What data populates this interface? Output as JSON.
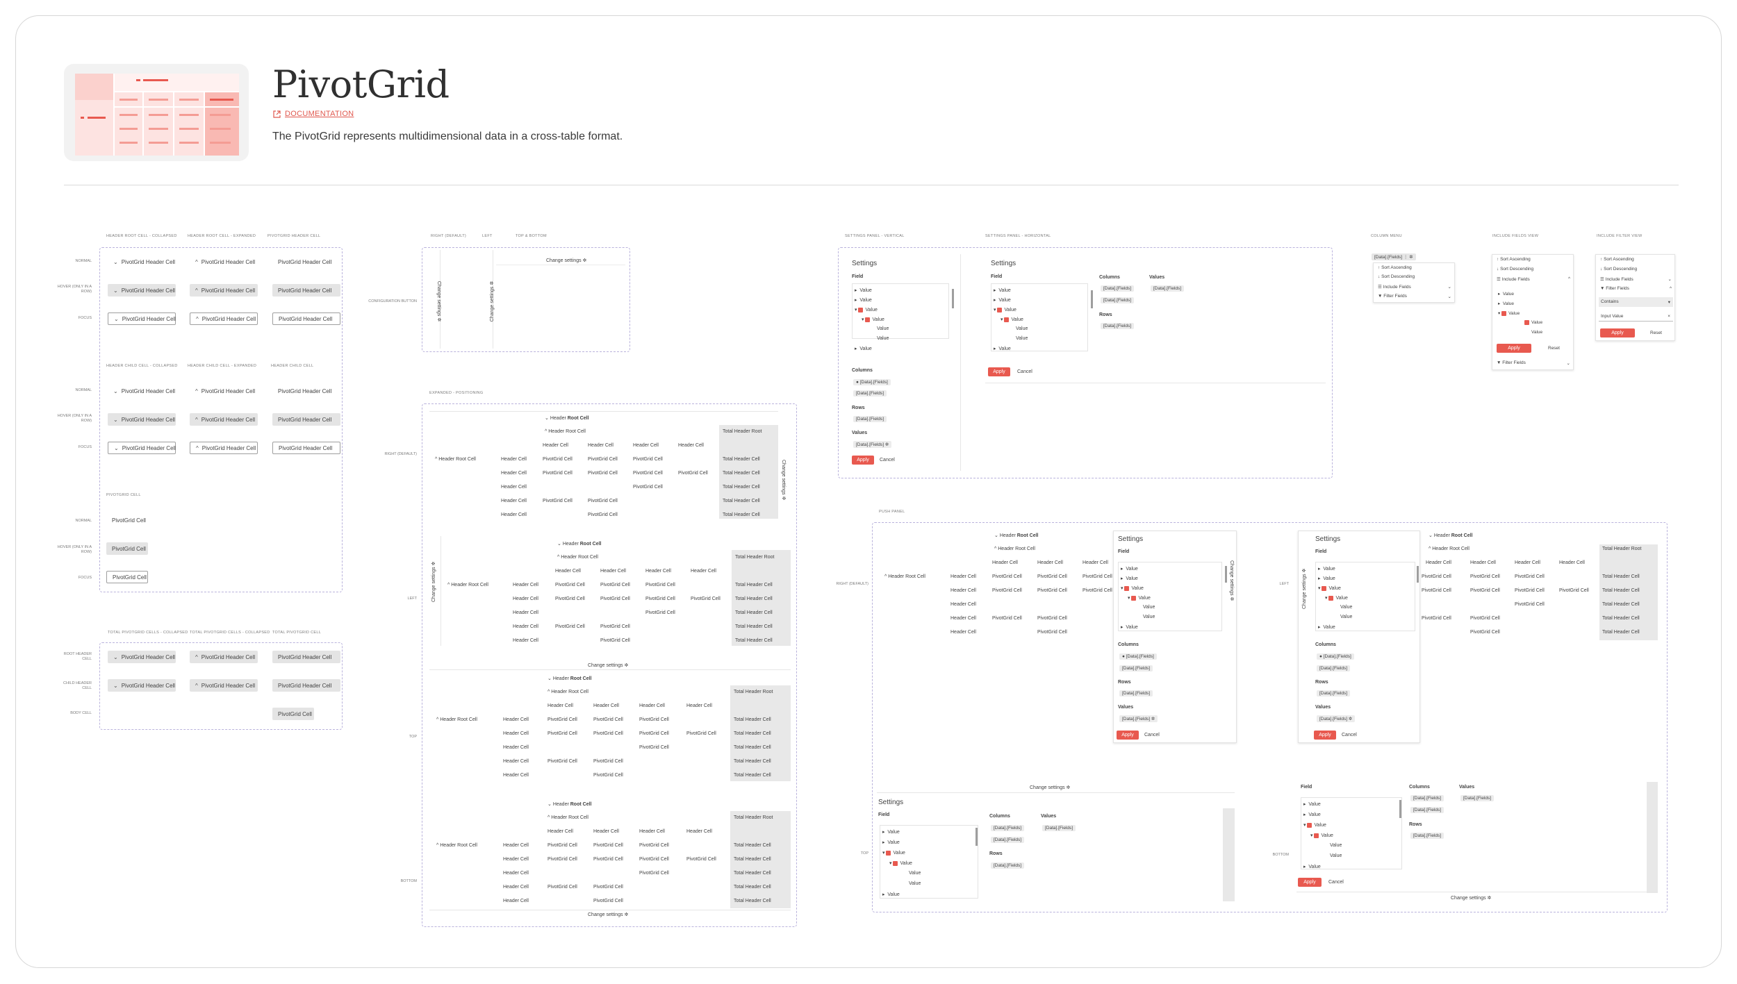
{
  "header": {
    "title": "PivotGrid",
    "documentation_label": "DOCUMENTATION",
    "description": "The PivotGrid represents multidimensional data in a cross-table format."
  },
  "colors": {
    "accent": "#e8594f",
    "dashed_border": "#b9b2dc",
    "hover": "#e4e4e4"
  },
  "states": {
    "group1": {
      "cols": [
        "HEADER ROOT CELL - COLLAPSED",
        "HEADER ROOT CELL - EXPANDED",
        "PIVOTGRID HEADER CELL"
      ]
    },
    "group2": {
      "cols": [
        "HEADER CHILD CELL - COLLAPSED",
        "HEADER CHILD CELL - EXPANDED",
        "HEADER CHILD CELL"
      ]
    },
    "group3": {
      "cols": [
        "PIVOTGRID CELL"
      ]
    },
    "group4": {
      "cols": [
        "TOTAL PIVOTGRID CELLS - COLLAPSED",
        "TOTAL PIVOTGRID CELLS - COLLAPSED",
        "TOTAL PIVOTGRID CELL"
      ]
    },
    "rows": {
      "normal": "NORMAL",
      "hover": "HOVER (ONLY IN A ROW)",
      "focus": "FOCUS",
      "root": "ROOT HEADER CELL",
      "child": "CHILD HEADER CELL",
      "body": "BODY CELL"
    },
    "cell_header": "PivotGrid Header Cell",
    "cell_plain": "PivotGrid Cell"
  },
  "config_button": {
    "caption": "CONFIGURATION BUTTON",
    "cols": [
      "RIGHT (DEFAULT)",
      "LEFT",
      "TOP & BOTTOM"
    ],
    "label": "Change settings"
  },
  "expanded": {
    "caption": "EXPANDED - POSITIONING",
    "positions": [
      "RIGHT (DEFAULT)",
      "LEFT",
      "TOP",
      "BOTTOM"
    ],
    "root_col": "Header Root Cell",
    "root_col_pre": "Header",
    "root_col_bold": "Root Cell",
    "row_root": "Header Root Cell",
    "header_cell": "Header Cell",
    "pivot_cell": "PivotGrid Cell",
    "total_root": "Total Header Root",
    "total_cell": "Total Header Cell",
    "change": "Change settings"
  },
  "settings": {
    "vertical_caption": "SETTINGS PANEL - VERTICAL",
    "horizontal_caption": "SETTINGS PANEL - HORIZONTAL",
    "title": "Settings",
    "field": "Field",
    "value": "Value",
    "columns": "Columns",
    "rows": "Rows",
    "values": "Values",
    "chip": "[Data].[Fields]",
    "apply": "Apply",
    "cancel": "Cancel"
  },
  "column_menu": {
    "caption": "COLUMN MENU",
    "chip": "[Data].[Fields]",
    "items": [
      "Sort Ascending",
      "Sort Descending",
      "Include Fields",
      "Filter Fields"
    ]
  },
  "include_view": {
    "caption": "INCLUDE FIELDS VIEW",
    "items": [
      "Sort Ascending",
      "Sort Descending",
      "Include Fields"
    ],
    "filter": "Filter Fields",
    "apply": "Apply",
    "reset": "Reset"
  },
  "filter_view": {
    "caption": "INCLUDE FILTER VIEW",
    "items": [
      "Sort Ascending",
      "Sort Descending",
      "Include Fields",
      "Filter Fields"
    ],
    "operator": "Contains",
    "input": "Input Value",
    "apply": "Apply",
    "reset": "Reset"
  },
  "push_panel": {
    "caption": "PUSH PANEL",
    "positions": [
      "RIGHT (DEFAULT)",
      "LEFT",
      "TOP",
      "BOTTOM"
    ]
  }
}
